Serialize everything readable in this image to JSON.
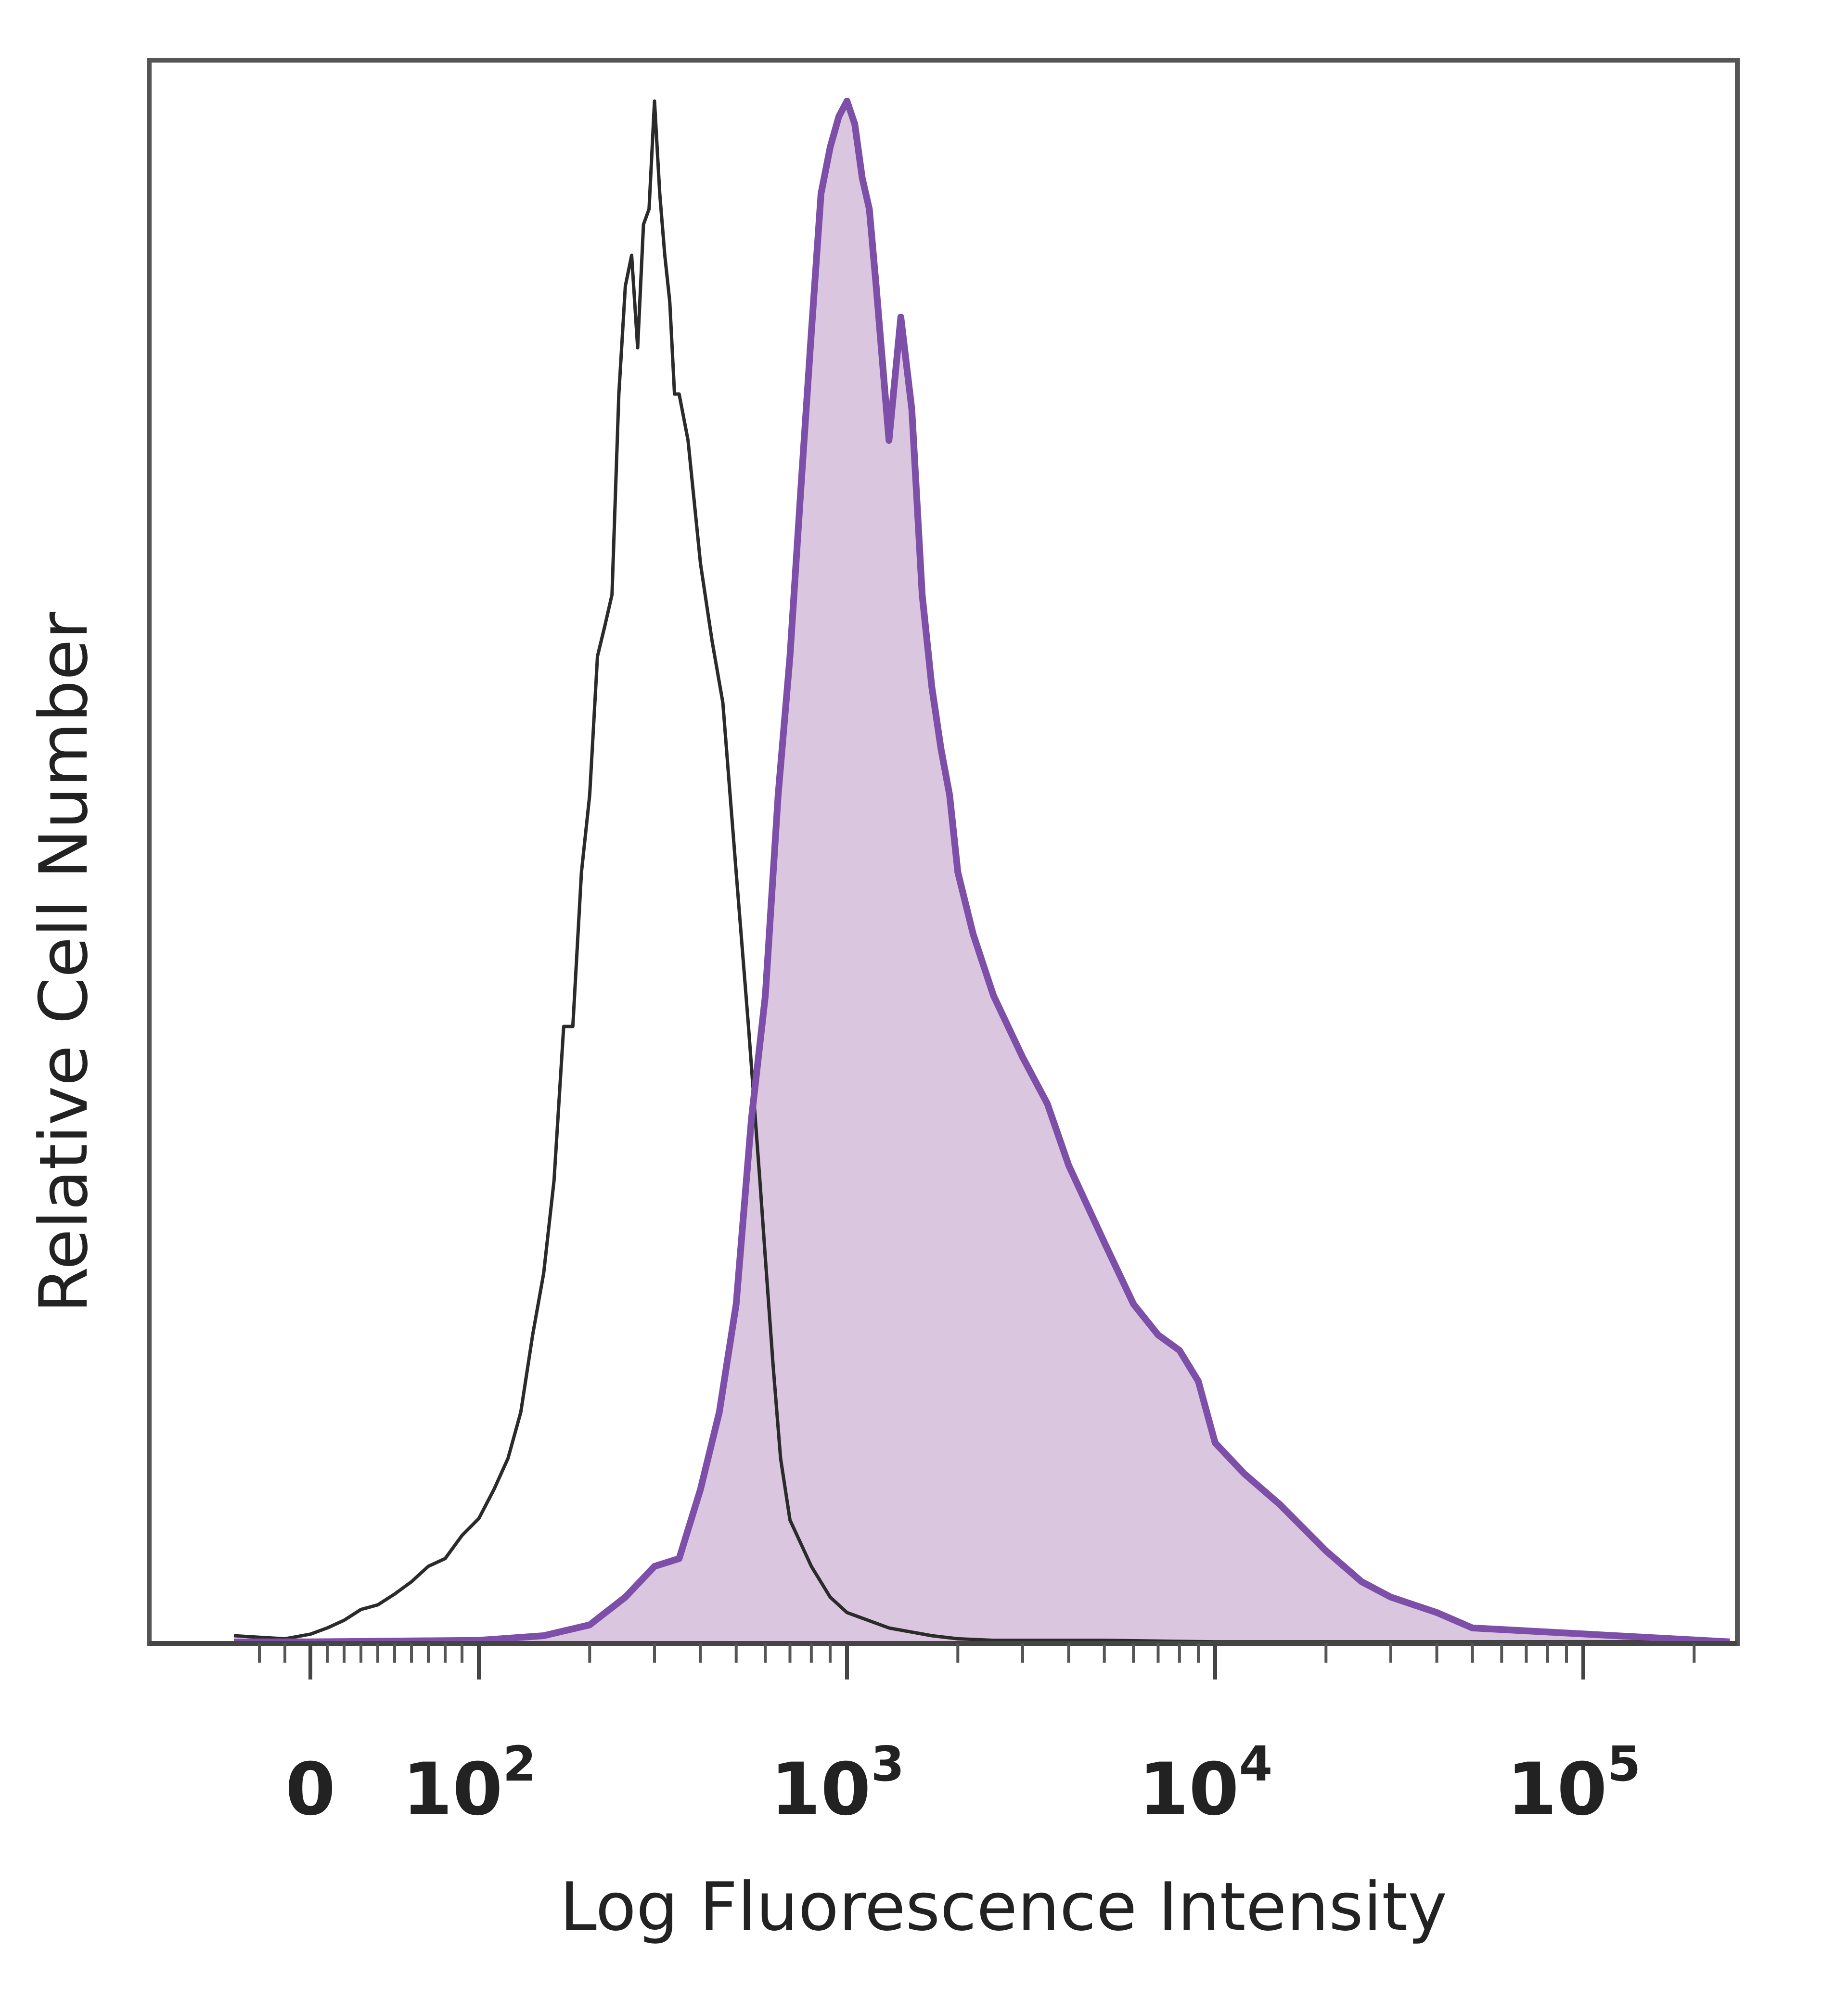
{
  "chart_data": {
    "type": "area",
    "title": "",
    "xlabel": "Log Fluorescence Intensity",
    "ylabel": "Relative Cell Number",
    "x_scale": "biexponential (log above 10^2, linear around 0)",
    "xlim": [
      -30,
      250000
    ],
    "ylim": [
      0,
      1
    ],
    "grid": false,
    "legend": "none",
    "x_ticks": [
      {
        "value": 0,
        "base": "0",
        "exp": ""
      },
      {
        "value": 100,
        "base": "10",
        "exp": "2"
      },
      {
        "value": 1000,
        "base": "10",
        "exp": "3"
      },
      {
        "value": 10000,
        "base": "10",
        "exp": "4"
      },
      {
        "value": 100000,
        "base": "10",
        "exp": "5"
      }
    ],
    "series": [
      {
        "style": "outline",
        "color": "#2b2b2b",
        "x": [
          -30,
          -20,
          -10,
          0,
          10,
          20,
          30,
          40,
          50,
          60,
          70,
          80,
          90,
          100,
          110,
          120,
          130,
          140,
          150,
          160,
          170,
          180,
          190,
          200,
          210,
          220,
          230,
          240,
          250,
          260,
          270,
          280,
          290,
          300,
          310,
          320,
          330,
          340,
          350,
          370,
          400,
          430,
          460,
          500,
          540,
          580,
          600,
          630,
          660,
          700,
          800,
          900,
          1000,
          1300,
          1700,
          2000,
          2500,
          5000,
          10000,
          250000
        ],
        "y": [
          0.005,
          0.004,
          0.003,
          0.006,
          0.01,
          0.015,
          0.022,
          0.025,
          0.032,
          0.04,
          0.05,
          0.055,
          0.07,
          0.081,
          0.1,
          0.12,
          0.15,
          0.2,
          0.24,
          0.3,
          0.4,
          0.4,
          0.5,
          0.55,
          0.64,
          0.66,
          0.68,
          0.81,
          0.88,
          0.9,
          0.84,
          0.92,
          0.93,
          1.0,
          0.94,
          0.9,
          0.87,
          0.81,
          0.81,
          0.78,
          0.7,
          0.65,
          0.61,
          0.5,
          0.4,
          0.3,
          0.25,
          0.18,
          0.12,
          0.08,
          0.05,
          0.03,
          0.02,
          0.01,
          0.005,
          0.003,
          0.002,
          0.002,
          0.001,
          0.001
        ]
      },
      {
        "style": "filled",
        "color": "#7d4fa8",
        "fill": "#dac6df",
        "x": [
          -30,
          0,
          100,
          150,
          200,
          250,
          300,
          350,
          400,
          450,
          500,
          550,
          600,
          650,
          700,
          750,
          800,
          850,
          900,
          950,
          1000,
          1050,
          1100,
          1150,
          1200,
          1300,
          1400,
          1500,
          1600,
          1700,
          1800,
          1900,
          2000,
          2200,
          2500,
          3000,
          3500,
          4000,
          5000,
          6000,
          7000,
          8000,
          9000,
          10000,
          12000,
          15000,
          20000,
          25000,
          30000,
          40000,
          50000,
          250000
        ],
        "y": [
          0.001,
          0.001,
          0.002,
          0.005,
          0.012,
          0.03,
          0.05,
          0.055,
          0.1,
          0.15,
          0.22,
          0.34,
          0.42,
          0.55,
          0.64,
          0.75,
          0.85,
          0.94,
          0.97,
          0.99,
          1.0,
          0.985,
          0.95,
          0.93,
          0.88,
          0.78,
          0.86,
          0.8,
          0.68,
          0.62,
          0.58,
          0.55,
          0.5,
          0.46,
          0.42,
          0.38,
          0.35,
          0.31,
          0.26,
          0.22,
          0.2,
          0.19,
          0.17,
          0.13,
          0.11,
          0.09,
          0.06,
          0.04,
          0.03,
          0.02,
          0.01,
          0.001
        ]
      }
    ]
  }
}
